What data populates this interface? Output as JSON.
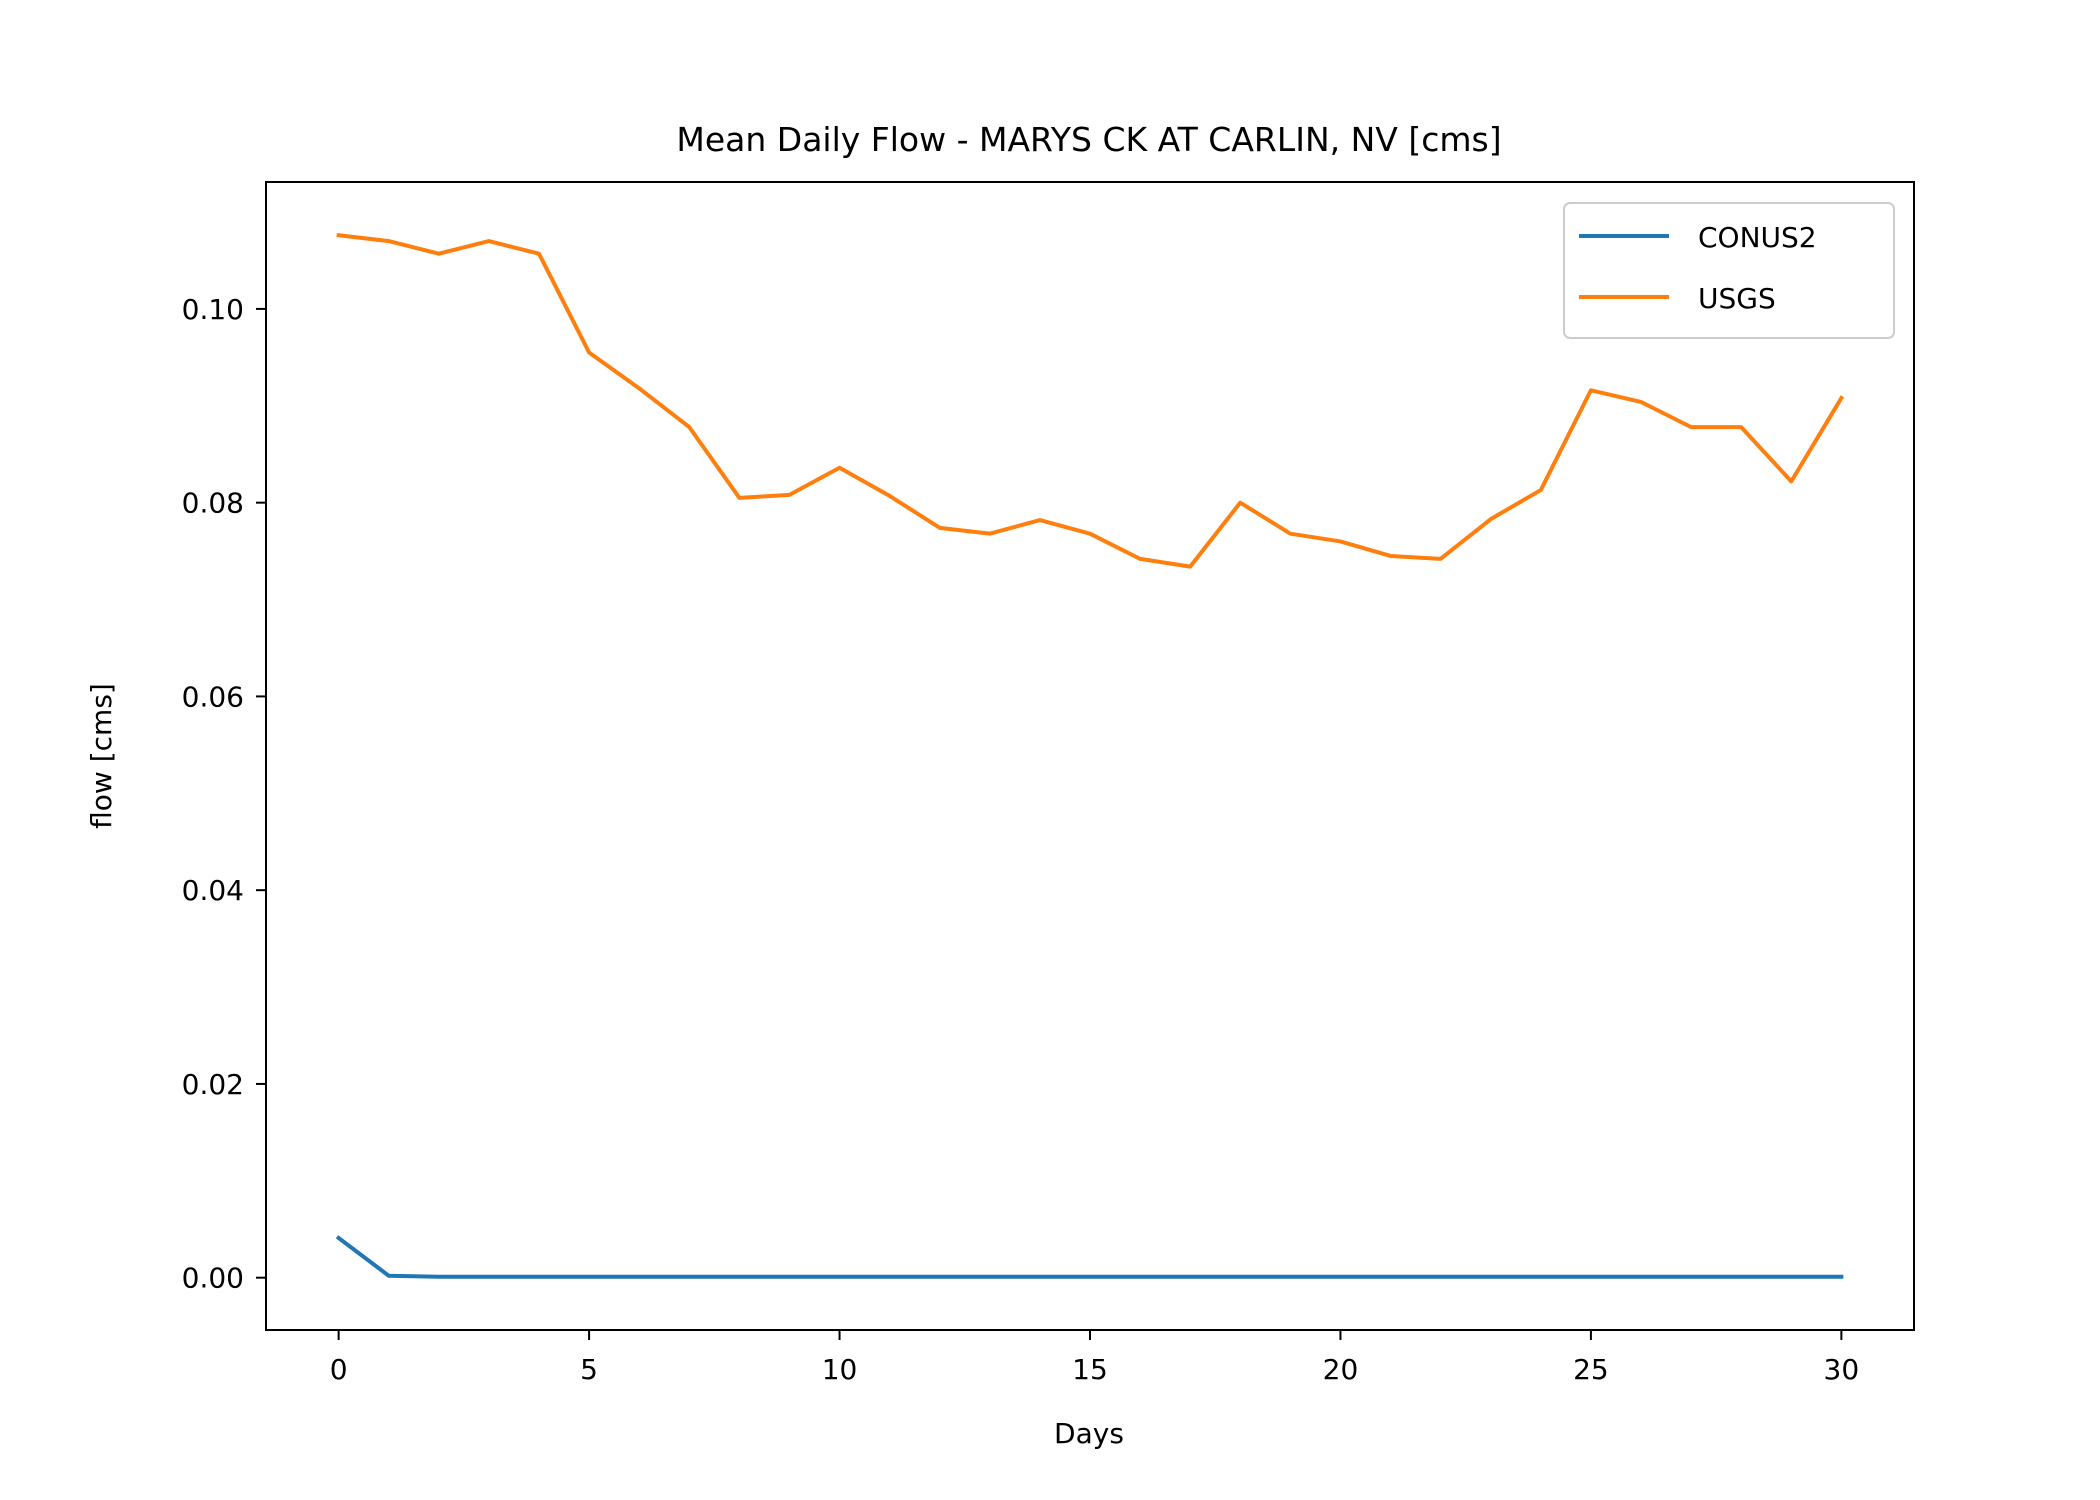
{
  "chart_data": {
    "type": "line",
    "title": "Mean Daily Flow - MARYS CK AT CARLIN, NV [cms]",
    "xlabel": "Days",
    "ylabel": "flow [cms]",
    "xlim": [
      -1.45,
      31.45
    ],
    "ylim": [
      -0.0054,
      0.1131
    ],
    "xticks": [
      0,
      5,
      10,
      15,
      20,
      25,
      30
    ],
    "xtick_labels": [
      "0",
      "5",
      "10",
      "15",
      "20",
      "25",
      "30"
    ],
    "yticks": [
      0.0,
      0.02,
      0.04,
      0.06,
      0.08,
      0.1
    ],
    "ytick_labels": [
      "0.00",
      "0.02",
      "0.04",
      "0.06",
      "0.08",
      "0.10"
    ],
    "grid": false,
    "legend_position": "upper right",
    "x": [
      0,
      1,
      2,
      3,
      4,
      5,
      6,
      7,
      8,
      9,
      10,
      11,
      12,
      13,
      14,
      15,
      16,
      17,
      18,
      19,
      20,
      21,
      22,
      23,
      24,
      25,
      26,
      27,
      28,
      29,
      30
    ],
    "series": [
      {
        "name": "CONUS2",
        "color": "#1f77b4",
        "values": [
          0.0041,
          0.0002,
          0.0001,
          0.0001,
          0.0001,
          0.0001,
          0.0001,
          0.0001,
          0.0001,
          0.0001,
          0.0001,
          0.0001,
          0.0001,
          0.0001,
          0.0001,
          0.0001,
          0.0001,
          0.0001,
          0.0001,
          0.0001,
          0.0001,
          0.0001,
          0.0001,
          0.0001,
          0.0001,
          0.0001,
          0.0001,
          0.0001,
          0.0001,
          0.0001,
          0.0001
        ]
      },
      {
        "name": "USGS",
        "color": "#ff7f0e",
        "values": [
          0.1076,
          0.107,
          0.1057,
          0.107,
          0.1057,
          0.0955,
          0.0918,
          0.0878,
          0.0805,
          0.0808,
          0.0836,
          0.0807,
          0.0774,
          0.0768,
          0.0782,
          0.0768,
          0.0742,
          0.0734,
          0.08,
          0.0768,
          0.076,
          0.0745,
          0.0742,
          0.0783,
          0.0813,
          0.0916,
          0.0904,
          0.0878,
          0.0878,
          0.0822,
          0.0908
        ]
      }
    ]
  }
}
